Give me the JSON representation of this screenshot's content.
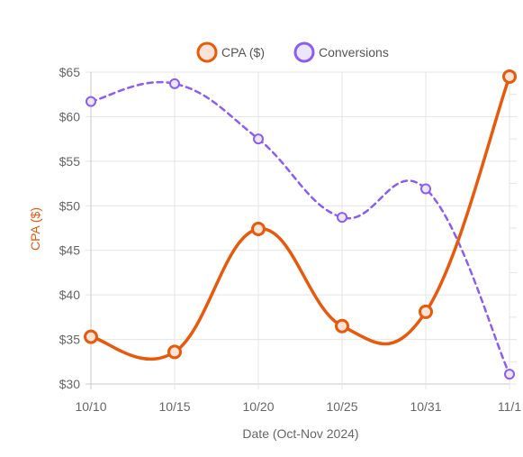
{
  "chart_data": {
    "type": "line",
    "categories": [
      "10/10",
      "10/15",
      "10/20",
      "10/25",
      "10/31",
      "11/1"
    ],
    "xlabel": "Date (Oct-Nov 2024)",
    "ylabel": "CPA ($)",
    "ylim": [
      30,
      65
    ],
    "y_ticks": [
      "$30",
      "$35",
      "$40",
      "$45",
      "$50",
      "$55",
      "$60",
      "$65"
    ],
    "grid": true,
    "legend_position": "top",
    "series": [
      {
        "name": "CPA ($)",
        "values": [
          35.3,
          33.6,
          47.4,
          36.5,
          38.1,
          64.5
        ],
        "color": "#e8590c",
        "line_style": "solid",
        "axis": "left"
      },
      {
        "name": "Conversions",
        "values": [
          61.7,
          63.7,
          57.5,
          48.7,
          51.9,
          31.1
        ],
        "color": "#8b5cf6",
        "line_style": "dashed",
        "axis": "right"
      }
    ]
  }
}
